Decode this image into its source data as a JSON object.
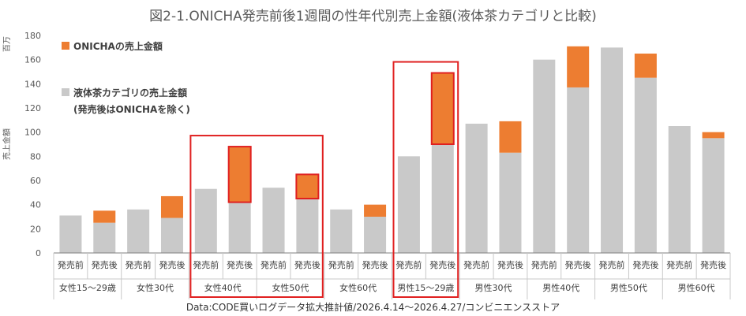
{
  "chart_data": {
    "type": "bar",
    "title": "図2-1.ONICHA発売前後1週間の性年代別売上金額(液体茶カテゴリと比較)",
    "unit": "百万",
    "ylabel": "売上金額",
    "ylim": [
      0,
      180
    ],
    "yticks": [
      0,
      20,
      40,
      60,
      80,
      100,
      120,
      140,
      160,
      180
    ],
    "groups": [
      "女性15～29歳",
      "女性30代",
      "女性40代",
      "女性50代",
      "女性60代",
      "男性15～29歳",
      "男性30代",
      "男性40代",
      "男性50代",
      "男性60代"
    ],
    "periods": [
      "発売前",
      "発売後"
    ],
    "categories": [
      "発売前",
      "発売後",
      "発売前",
      "発売後",
      "発売前",
      "発売後",
      "発売前",
      "発売後",
      "発売前",
      "発売後",
      "発売前",
      "発売後",
      "発売前",
      "発売後",
      "発売前",
      "発売後",
      "発売前",
      "発売後",
      "発売前",
      "発売後"
    ],
    "series": [
      {
        "name": "液体茶カテゴリの売上金額",
        "values": [
          31,
          25,
          36,
          29,
          53,
          42,
          54,
          45,
          36,
          30,
          80,
          90,
          107,
          83,
          160,
          137,
          170,
          145,
          105,
          95
        ]
      },
      {
        "name": "ONICHAの売上金額",
        "values": [
          0,
          10,
          0,
          18,
          0,
          46,
          0,
          20,
          0,
          10,
          0,
          59,
          0,
          26,
          0,
          34,
          0,
          20,
          0,
          5
        ]
      }
    ],
    "legend": [
      {
        "label": "ONICHAの売上金額",
        "color": "#ED7D31"
      },
      {
        "label": "液体茶カテゴリの売上金額",
        "sub": "(発売後はONICHAを除く)",
        "color": "#C9C9C9"
      }
    ],
    "highlighted_groups": [
      "女性40代",
      "女性50代",
      "男性15～29歳"
    ],
    "colors": {
      "category": "#C9C9C9",
      "onicha": "#ED7D31",
      "highlight": "#E02020",
      "axis": "#595959"
    },
    "legend_position": "top-left",
    "grid": false
  },
  "footer": "Data:CODE買いログデータ拡大推計値/2026.4.14～2026.4.27/コンビニエンスストア"
}
